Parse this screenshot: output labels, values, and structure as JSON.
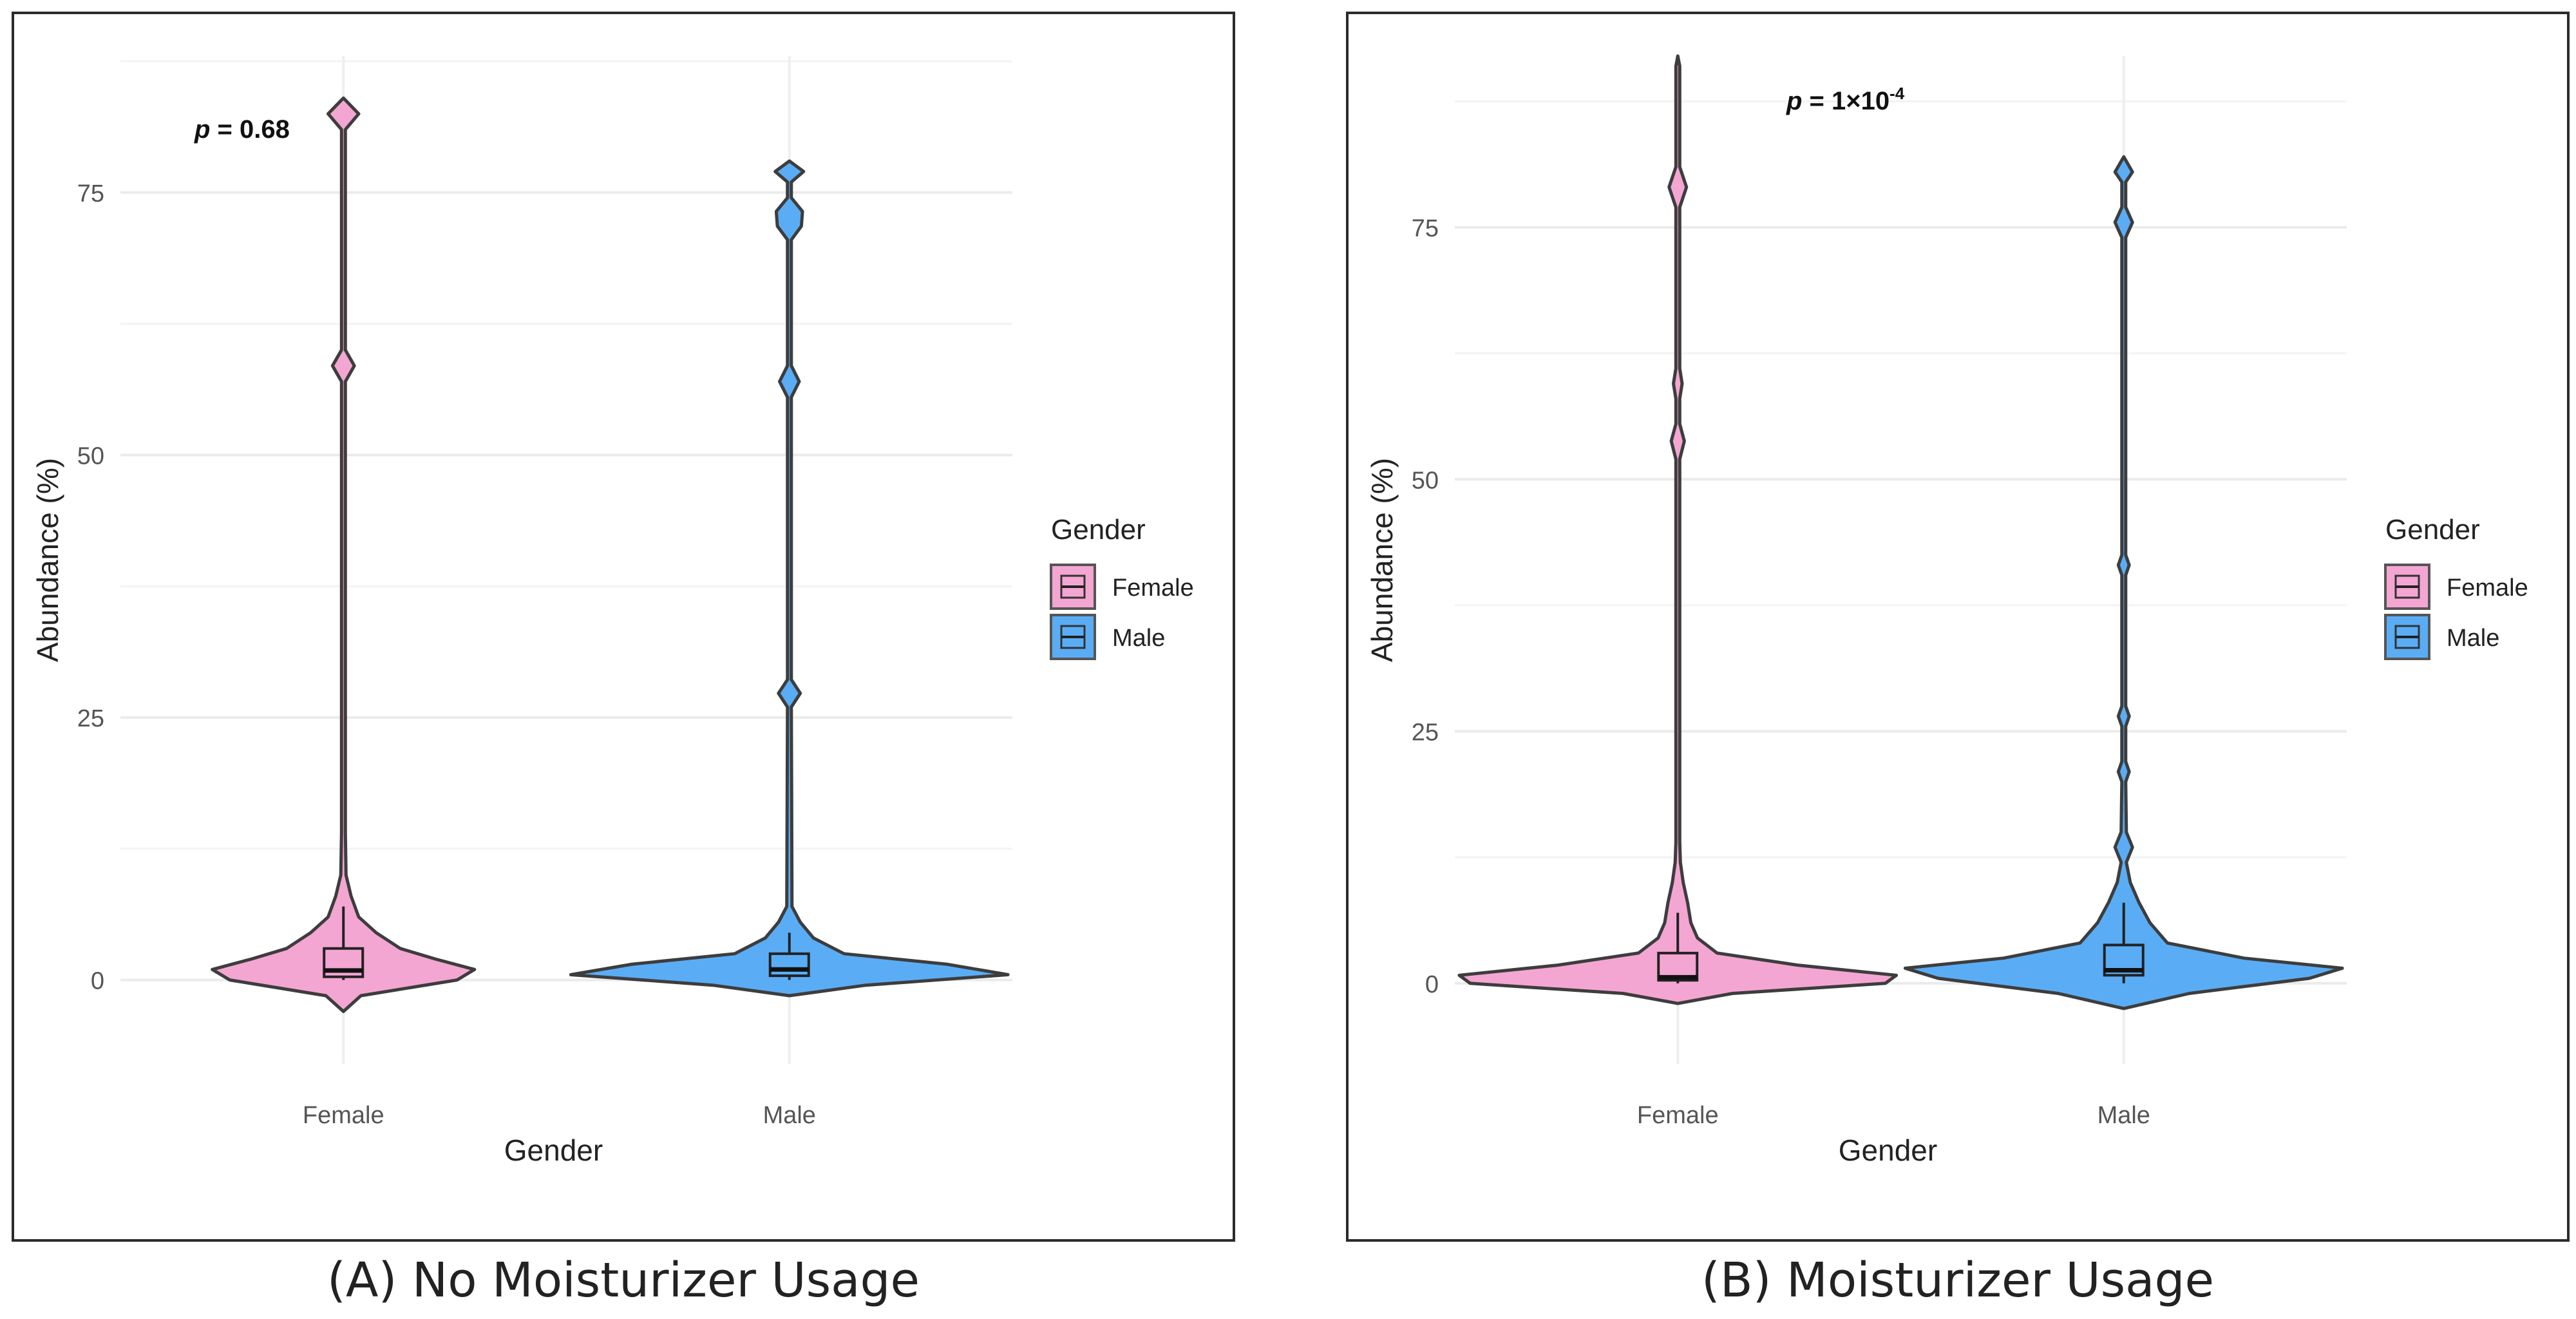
{
  "chart_data": [
    {
      "type": "violin",
      "panel_caption": "(A) No Moisturizer Usage",
      "xlabel": "Gender",
      "ylabel": "Abundance (%)",
      "categories": [
        "Female",
        "Male"
      ],
      "yticks": [
        0,
        25,
        50,
        75
      ],
      "ylim": [
        -8,
        88
      ],
      "annotation": {
        "p_symbol": "p",
        "rest": " = 0.68",
        "superscript": ""
      },
      "legend": {
        "title": "Gender",
        "entries": [
          "Female",
          "Male"
        ],
        "placement": "right"
      },
      "series": [
        {
          "name": "Female",
          "color": "#F4A6D2",
          "box": {
            "q1": 0.3,
            "median": 0.9,
            "q3": 3.0,
            "whisker_low": 0.0,
            "whisker_high": 7.0
          },
          "max": 84.0,
          "profile": [
            [
              -3,
              0.0
            ],
            [
              -1.5,
              0.08
            ],
            [
              0,
              0.52
            ],
            [
              1,
              0.6
            ],
            [
              2,
              0.42
            ],
            [
              3,
              0.26
            ],
            [
              4.5,
              0.15
            ],
            [
              6,
              0.07
            ],
            [
              8,
              0.035
            ],
            [
              10,
              0.012
            ],
            [
              14,
              0.006
            ],
            [
              57,
              0.006
            ],
            [
              58.5,
              0.05
            ],
            [
              60,
              0.006
            ],
            [
              81,
              0.006
            ],
            [
              82.5,
              0.07
            ],
            [
              84,
              0.0
            ]
          ]
        },
        {
          "name": "Male",
          "color": "#5AADF5",
          "box": {
            "q1": 0.4,
            "median": 1.0,
            "q3": 2.5,
            "whisker_low": 0.0,
            "whisker_high": 4.5
          },
          "max": 78.0,
          "profile": [
            [
              -1.5,
              0.0
            ],
            [
              -0.5,
              0.35
            ],
            [
              0.5,
              1.0
            ],
            [
              1.5,
              0.72
            ],
            [
              2.5,
              0.25
            ],
            [
              4,
              0.11
            ],
            [
              5.5,
              0.05
            ],
            [
              7,
              0.012
            ],
            [
              26,
              0.006
            ],
            [
              27.3,
              0.05
            ],
            [
              28.6,
              0.006
            ],
            [
              55.5,
              0.006
            ],
            [
              57,
              0.045
            ],
            [
              58.5,
              0.006
            ],
            [
              70.5,
              0.006
            ],
            [
              71.8,
              0.055
            ],
            [
              73.2,
              0.06
            ],
            [
              74.5,
              0.006
            ],
            [
              76,
              0.006
            ],
            [
              77,
              0.065
            ],
            [
              78,
              0.0
            ]
          ]
        }
      ]
    },
    {
      "type": "violin",
      "panel_caption": "(B) Moisturizer Usage",
      "xlabel": "Gender",
      "ylabel": "Abundance (%)",
      "categories": [
        "Female",
        "Male"
      ],
      "yticks": [
        0,
        25,
        50,
        75
      ],
      "ylim": [
        -8,
        92
      ],
      "annotation": {
        "p_symbol": "p",
        "rest": " = 1×10",
        "superscript": "-4"
      },
      "legend": {
        "title": "Gender",
        "entries": [
          "Female",
          "Male"
        ],
        "placement": "right"
      },
      "series": [
        {
          "name": "Female",
          "color": "#F4A6D2",
          "box": {
            "q1": 0.3,
            "median": 0.6,
            "q3": 3.0,
            "whisker_low": 0.0,
            "whisker_high": 7.0
          },
          "max": 92.0,
          "profile": [
            [
              -2,
              0.0
            ],
            [
              -1,
              0.25
            ],
            [
              0,
              0.95
            ],
            [
              0.8,
              1.0
            ],
            [
              1.8,
              0.55
            ],
            [
              3,
              0.18
            ],
            [
              4.5,
              0.09
            ],
            [
              6,
              0.06
            ],
            [
              8,
              0.045
            ],
            [
              10,
              0.025
            ],
            [
              12,
              0.012
            ],
            [
              14,
              0.006
            ],
            [
              52,
              0.006
            ],
            [
              53.8,
              0.03
            ],
            [
              55.5,
              0.006
            ],
            [
              58,
              0.006
            ],
            [
              59.5,
              0.02
            ],
            [
              61,
              0.006
            ],
            [
              77,
              0.006
            ],
            [
              79,
              0.04
            ],
            [
              81,
              0.006
            ],
            [
              91,
              0.006
            ],
            [
              92,
              0.0
            ]
          ]
        },
        {
          "name": "Male",
          "color": "#5AADF5",
          "box": {
            "q1": 0.8,
            "median": 1.3,
            "q3": 3.8,
            "whisker_low": 0.0,
            "whisker_high": 8.0
          },
          "max": 82.0,
          "profile": [
            [
              -2.5,
              0.0
            ],
            [
              -1,
              0.3
            ],
            [
              0.5,
              0.85
            ],
            [
              1.5,
              1.0
            ],
            [
              2.5,
              0.55
            ],
            [
              4,
              0.2
            ],
            [
              6,
              0.12
            ],
            [
              8,
              0.07
            ],
            [
              10,
              0.03
            ],
            [
              12,
              0.012
            ],
            [
              13.5,
              0.04
            ],
            [
              15,
              0.012
            ],
            [
              20,
              0.006
            ],
            [
              21,
              0.025
            ],
            [
              22,
              0.006
            ],
            [
              25.5,
              0.006
            ],
            [
              26.5,
              0.025
            ],
            [
              27.5,
              0.006
            ],
            [
              40.5,
              0.006
            ],
            [
              41.5,
              0.025
            ],
            [
              42.5,
              0.006
            ],
            [
              74,
              0.006
            ],
            [
              75.5,
              0.04
            ],
            [
              77,
              0.006
            ],
            [
              79.5,
              0.006
            ],
            [
              80.5,
              0.04
            ],
            [
              82,
              0.0
            ]
          ]
        }
      ]
    }
  ]
}
